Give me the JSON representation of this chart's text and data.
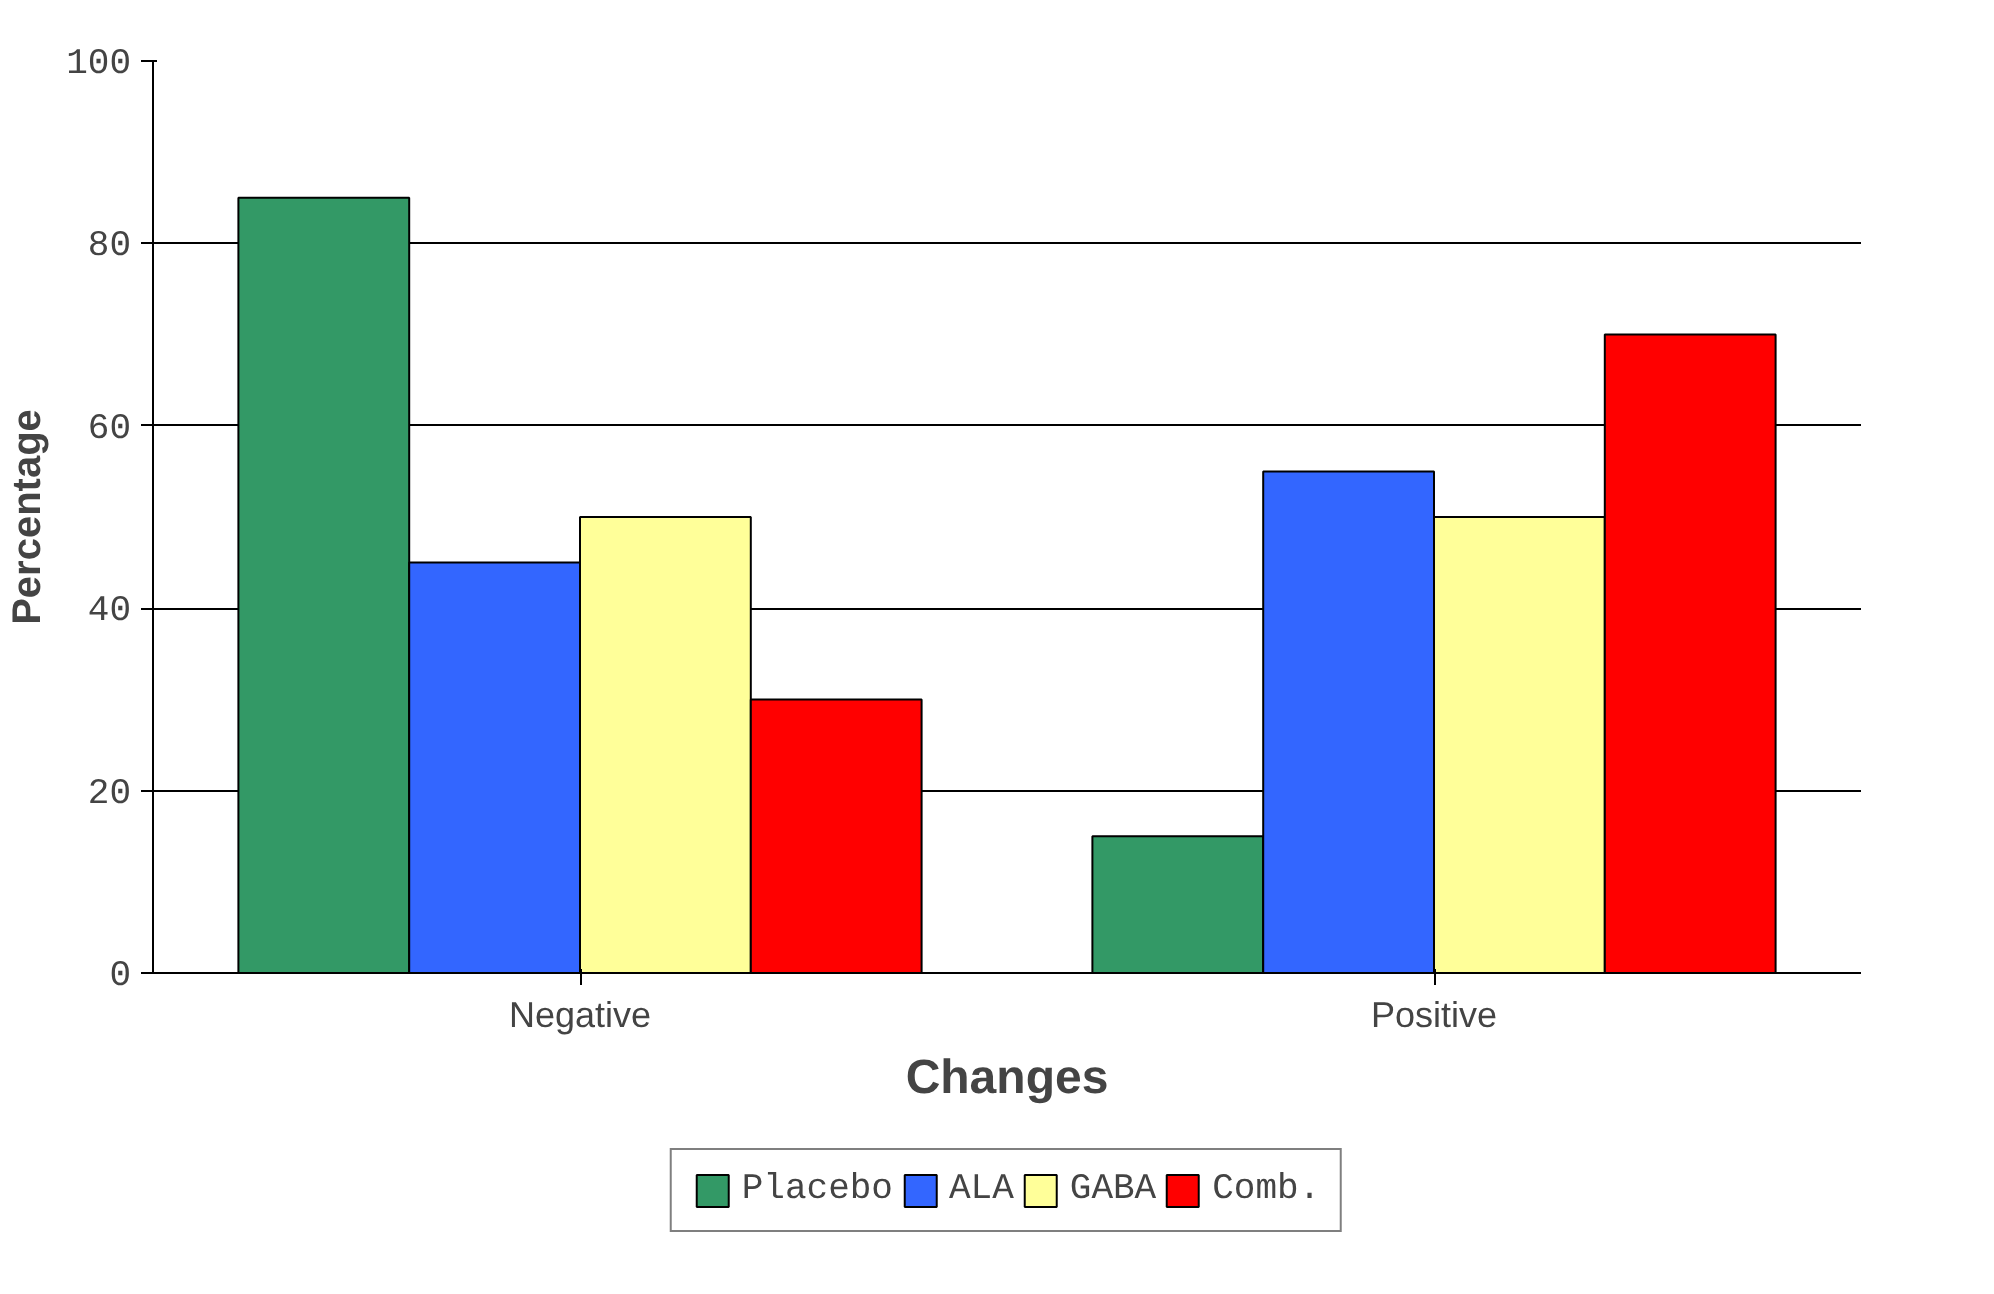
{
  "chart_data": {
    "type": "bar",
    "xlabel": "Changes",
    "ylabel": "Percentage",
    "categories": [
      "Negative",
      "Positive"
    ],
    "series": [
      {
        "name": "Placebo",
        "color": "#339966",
        "values": [
          85,
          15
        ]
      },
      {
        "name": "ALA",
        "color": "#3366ff",
        "values": [
          45,
          55
        ]
      },
      {
        "name": "GABA",
        "color": "#ffff99",
        "values": [
          50,
          50
        ]
      },
      {
        "name": "Comb.",
        "color": "#ff0000",
        "values": [
          30,
          70
        ]
      }
    ],
    "ylim": [
      0,
      100
    ],
    "yticks": [
      0,
      20,
      40,
      60,
      80,
      100
    ],
    "grid": "y",
    "legend": "bottom"
  }
}
